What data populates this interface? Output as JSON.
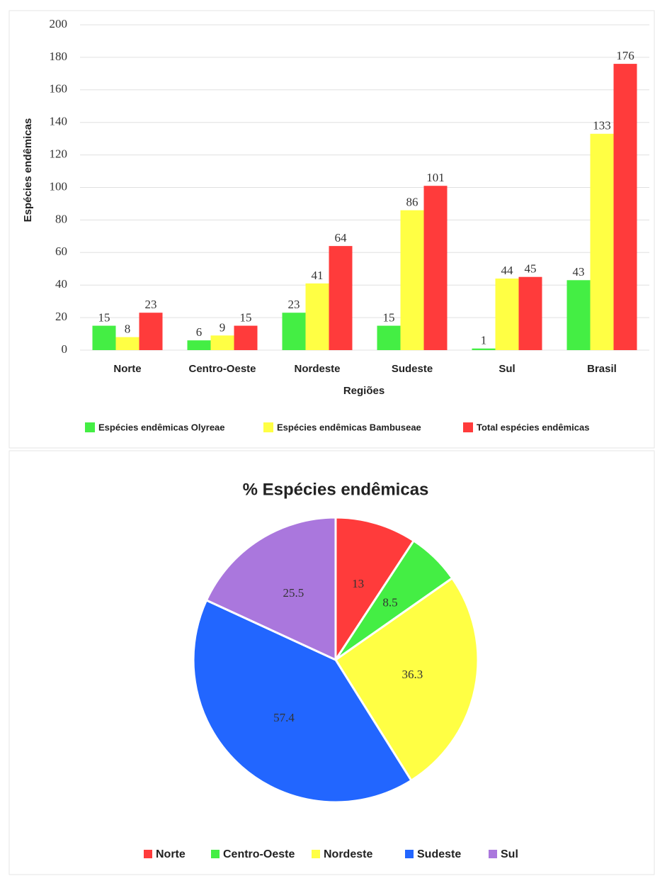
{
  "chart_data": [
    {
      "type": "bar",
      "categories": [
        "Norte",
        "Centro-Oeste",
        "Nordeste",
        "Sudeste",
        "Sul",
        "Brasil"
      ],
      "series": [
        {
          "name": "Espécies endêmicas Olyreae",
          "color": "#44ee44",
          "values": [
            15,
            6,
            23,
            15,
            1,
            43
          ]
        },
        {
          "name": "Espécies endêmicas Bambuseae",
          "color": "#ffff44",
          "values": [
            8,
            9,
            41,
            86,
            44,
            133
          ]
        },
        {
          "name": "Total espécies endêmicas",
          "color": "#ff3b3b",
          "values": [
            23,
            15,
            64,
            101,
            45,
            176
          ]
        }
      ],
      "ylabel": "Espécies endêmicas",
      "xlabel": "Regiões",
      "ylim": [
        0,
        200
      ],
      "yticks": [
        0,
        20,
        40,
        60,
        80,
        100,
        120,
        140,
        160,
        180,
        200
      ],
      "grid": true,
      "legend": "bottom"
    },
    {
      "type": "pie",
      "title": "% Espécies endêmicas",
      "categories": [
        "Norte",
        "Centro-Oeste",
        "Nordeste",
        "Sudeste",
        "Sul"
      ],
      "values": [
        13,
        8.5,
        36.3,
        57.4,
        25.5
      ],
      "colors": [
        "#ff3b3b",
        "#44ee44",
        "#ffff44",
        "#2266ff",
        "#aa77dd"
      ],
      "legend": "bottom"
    }
  ]
}
